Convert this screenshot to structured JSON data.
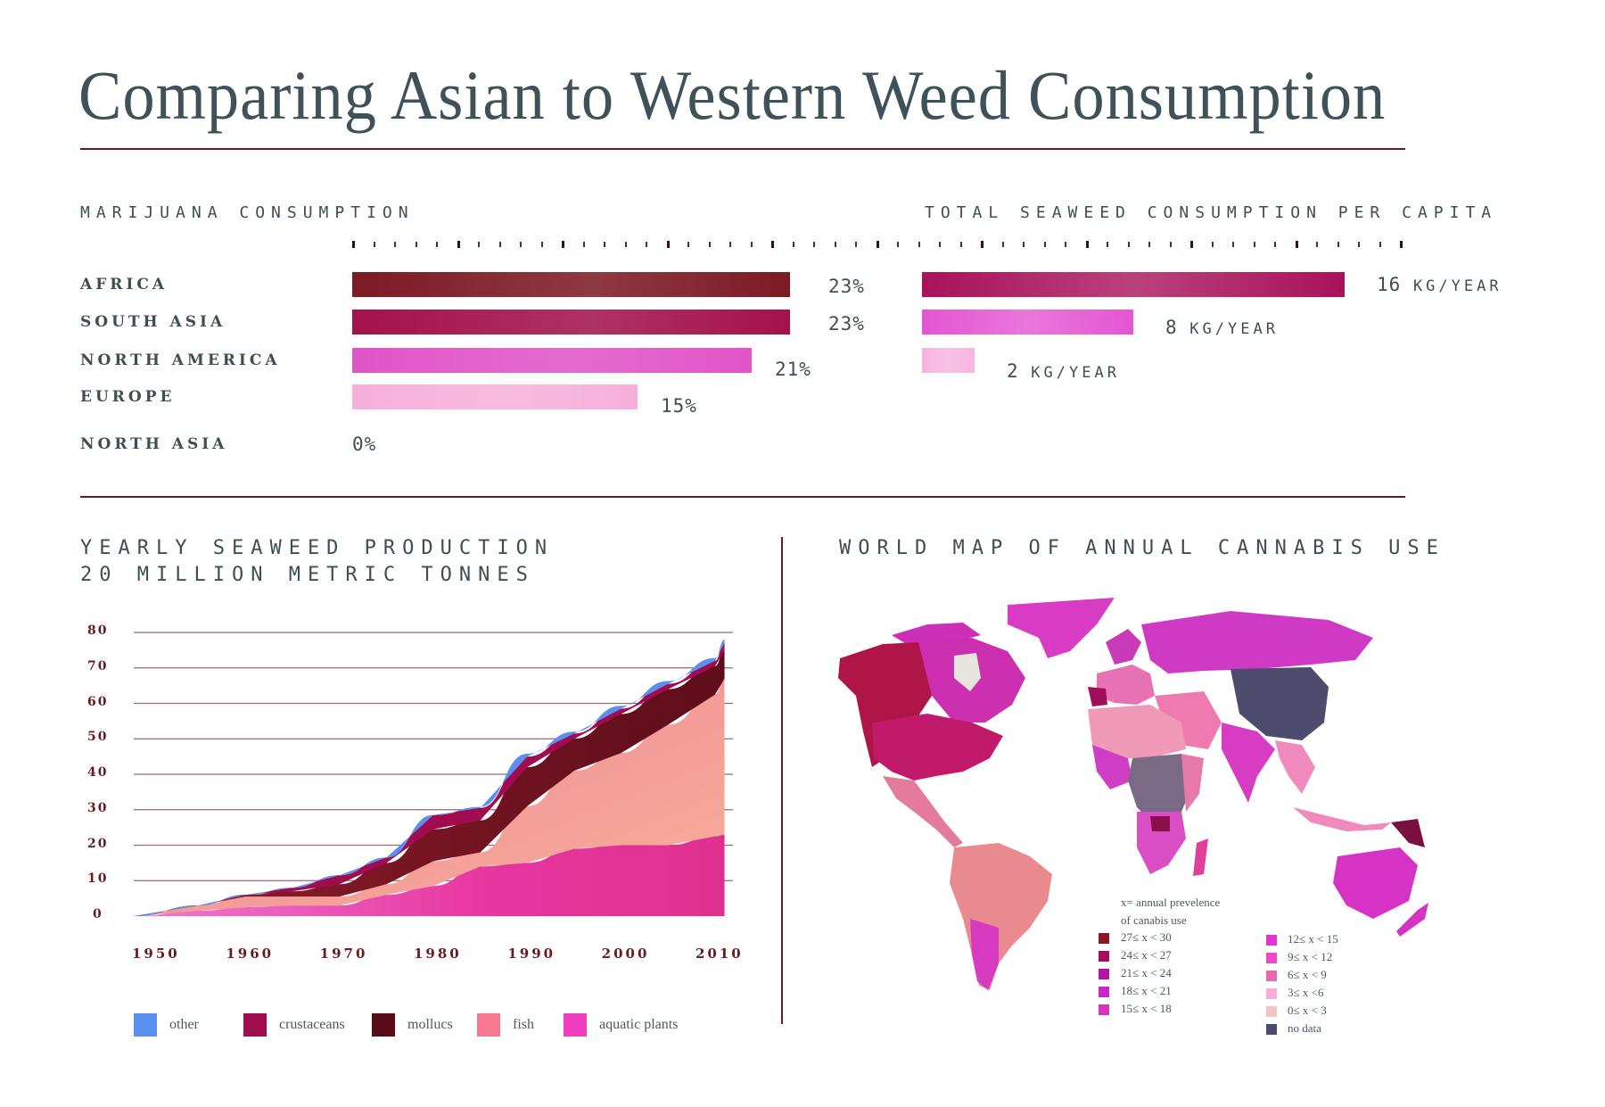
{
  "title": "Comparing Asian to Western Weed Consumption",
  "marijuana": {
    "label": "MARIJUANA CONSUMPTION",
    "rows": [
      {
        "region": "AFRICA",
        "value": "23%",
        "pct": 23,
        "color": "#7d1a24"
      },
      {
        "region": "SOUTH ASIA",
        "value": "23%",
        "pct": 23,
        "color": "#a3124a"
      },
      {
        "region": "NORTH AMERICA",
        "value": "21%",
        "pct": 21,
        "color": "#e055c8"
      },
      {
        "region": "EUROPE",
        "value": "15%",
        "pct": 15,
        "color": "#f6b0da"
      },
      {
        "region": "NORTH ASIA",
        "value": "0%",
        "pct": 0,
        "color": "#ffffff"
      }
    ]
  },
  "seaweed_per_capita": {
    "label": "TOTAL SEAWEED CONSUMPTION PER CAPITA",
    "rows": [
      {
        "num": "16",
        "unit": "KG/YEAR",
        "kg": 16,
        "color": "#a8125a"
      },
      {
        "num": "8",
        "unit": "KG/YEAR",
        "kg": 8,
        "color": "#e455d2"
      },
      {
        "num": "2",
        "unit": "KG/YEAR",
        "kg": 2,
        "color": "#f7b4de"
      }
    ]
  },
  "production": {
    "title_line1": "YEARLY SEAWEED PRODUCTION",
    "title_line2": "20 MILLION METRIC TONNES"
  },
  "map": {
    "title": "WORLD MAP OF ANNUAL CANNABIS USE",
    "legend_title_1": "x= annual prevelence",
    "legend_title_2": "of canabis use",
    "legend_left": [
      {
        "label": "27≤ x < 30",
        "color": "#8c1526"
      },
      {
        "label": "24≤ x < 27",
        "color": "#a60f5e"
      },
      {
        "label": "21≤ x < 24",
        "color": "#b514a3"
      },
      {
        "label": "18≤ x < 21",
        "color": "#c926c8"
      },
      {
        "label": "15≤ x < 18",
        "color": "#d535b6"
      }
    ],
    "legend_right": [
      {
        "label": "12≤ x < 15",
        "color": "#e336d0"
      },
      {
        "label": "9≤ x < 12",
        "color": "#ee4ac8"
      },
      {
        "label": "6≤ x < 9",
        "color": "#e46aae"
      },
      {
        "label": "3≤ x <6",
        "color": "#f7aedb"
      },
      {
        "label": "0≤ x < 3",
        "color": "#f2c6c0"
      },
      {
        "label": "no data",
        "color": "#4a4b72"
      }
    ]
  },
  "chart_data": [
    {
      "type": "bar",
      "title": "MARIJUANA CONSUMPTION",
      "orientation": "horizontal",
      "categories": [
        "AFRICA",
        "SOUTH ASIA",
        "NORTH AMERICA",
        "EUROPE",
        "NORTH ASIA"
      ],
      "values": [
        23,
        23,
        21,
        15,
        0
      ],
      "unit": "%"
    },
    {
      "type": "bar",
      "title": "TOTAL SEAWEED CONSUMPTION PER CAPITA",
      "orientation": "horizontal",
      "categories": [
        "",
        "",
        ""
      ],
      "values": [
        16,
        8,
        2
      ],
      "unit": "KG/YEAR"
    },
    {
      "type": "area",
      "stacked": true,
      "title": "YEARLY SEAWEED PRODUCTION",
      "subtitle": "20 MILLION METRIC TONNES",
      "xlabel": "",
      "ylabel": "",
      "ylim": [
        0,
        80
      ],
      "yticks": [
        0,
        10,
        20,
        30,
        40,
        50,
        60,
        70,
        80
      ],
      "xticks": [
        1950,
        1960,
        1970,
        1980,
        1990,
        2000,
        2010
      ],
      "x": [
        1950,
        1955,
        1960,
        1965,
        1970,
        1975,
        1980,
        1985,
        1990,
        1995,
        2000,
        2005,
        2010,
        2011
      ],
      "series": [
        {
          "name": "aquatic plants",
          "color": "#ef3fc0",
          "values": [
            0,
            1.5,
            2.5,
            3,
            3,
            6,
            8.5,
            14,
            15,
            19,
            20,
            20,
            22.5,
            23
          ]
        },
        {
          "name": "fish",
          "color": "#f7798f",
          "values": [
            0,
            1.5,
            3,
            2.5,
            2.5,
            3,
            7,
            4,
            16,
            22,
            26,
            34,
            40,
            44
          ]
        },
        {
          "name": "mollucs",
          "color": "#5a0c18",
          "values": [
            0,
            0,
            0.5,
            1.5,
            3.5,
            6,
            9,
            9,
            11,
            9,
            11,
            10,
            8,
            8
          ]
        },
        {
          "name": "crustaceans",
          "color": "#a10b50",
          "values": [
            0,
            0,
            0,
            1,
            2.5,
            1.5,
            4,
            3.5,
            3,
            1.5,
            1.5,
            1.5,
            1.5,
            2
          ]
        },
        {
          "name": "other",
          "color": "#5b8ff0",
          "values": [
            0,
            0,
            0,
            0,
            0,
            0,
            0,
            0.3,
            0.8,
            0.5,
            0.8,
            0.8,
            0.8,
            1
          ]
        }
      ],
      "legend": [
        "other",
        "crustaceans",
        "mollucs",
        "fish",
        "aquatic plants"
      ],
      "legend_position": "bottom",
      "grid": true
    }
  ],
  "area_chart": {
    "y_ticks": [
      "80",
      "70",
      "60",
      "50",
      "40",
      "30",
      "20",
      "10",
      "0"
    ],
    "x_ticks": [
      "1950",
      "1960",
      "1970",
      "1980",
      "1990",
      "2000",
      "2010"
    ],
    "legend": [
      {
        "label": "other",
        "color": "#5b8ff0"
      },
      {
        "label": "crustaceans",
        "color": "#a10b50"
      },
      {
        "label": "mollucs",
        "color": "#5a0c18"
      },
      {
        "label": "fish",
        "color": "#f7798f"
      },
      {
        "label": "aquatic plants",
        "color": "#ef3fc0"
      }
    ]
  }
}
